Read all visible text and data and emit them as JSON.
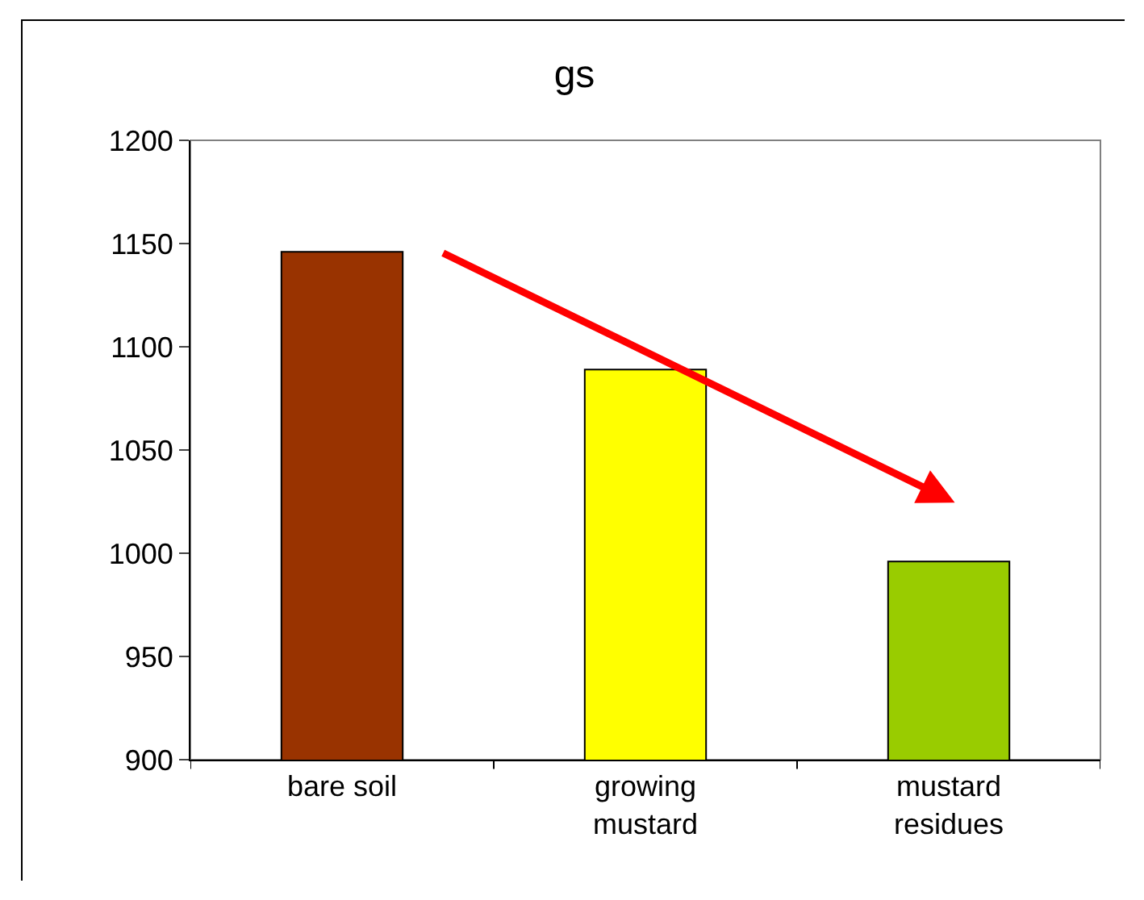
{
  "chart_data": {
    "type": "bar",
    "title": "gs",
    "categories": [
      "bare soil",
      "growing\nmustard",
      "mustard\nresidues"
    ],
    "values": [
      1146,
      1089,
      996
    ],
    "colors": [
      "#993300",
      "#ffff00",
      "#99cc00"
    ],
    "ylim": [
      900,
      1200
    ],
    "yticks": [
      900,
      950,
      1000,
      1050,
      1100,
      1150,
      1200
    ],
    "grid": false
  }
}
